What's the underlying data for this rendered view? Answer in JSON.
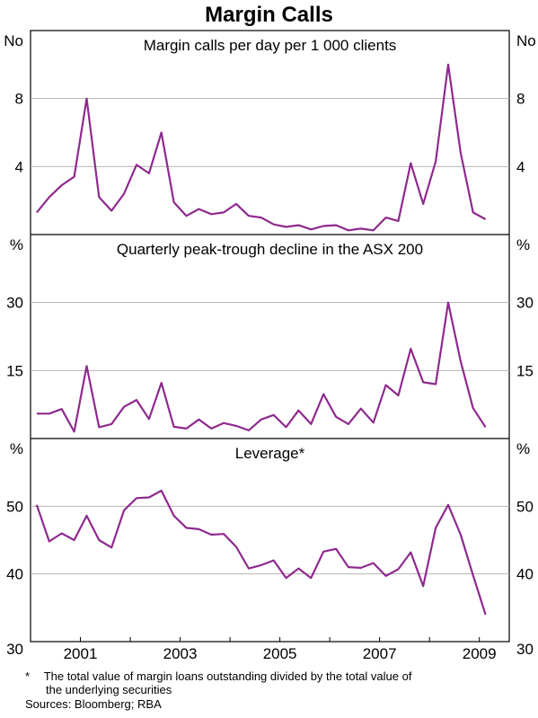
{
  "chart_data": {
    "type": "line",
    "title": "Margin Calls",
    "color": "#8e2a8e",
    "xlim": [
      2000.0,
      2009.6
    ],
    "x_ticks": [
      "2001",
      "2003",
      "2005",
      "2007",
      "2009"
    ],
    "x_tick_values": [
      2001,
      2003,
      2005,
      2007,
      2009
    ],
    "x_start": 2000.125,
    "x_step": 0.25,
    "panels": [
      {
        "title": "Margin calls per day per 1 000 clients",
        "unit": "No",
        "ylim": [
          0,
          12
        ],
        "yticks": [
          "8",
          "4"
        ],
        "ytick_values": [
          8,
          4
        ],
        "series": [
          {
            "values": [
              1.3,
              2.2,
              2.9,
              3.4,
              8.0,
              2.2,
              1.4,
              2.4,
              4.1,
              3.6,
              6.0,
              1.9,
              1.1,
              1.5,
              1.2,
              1.3,
              1.8,
              1.1,
              1.0,
              0.6,
              0.45,
              0.55,
              0.3,
              0.5,
              0.55,
              0.25,
              0.35,
              0.25,
              1.0,
              0.8,
              4.2,
              1.8,
              4.3,
              10.0,
              4.8,
              1.3,
              0.9
            ]
          }
        ]
      },
      {
        "title": "Quarterly peak-trough decline in the ASX 200",
        "unit": "%",
        "ylim": [
          0,
          45
        ],
        "yticks": [
          "30",
          "15"
        ],
        "ytick_values": [
          30,
          15
        ],
        "series": [
          {
            "values": [
              5.5,
              5.5,
              6.5,
              1.5,
              16.0,
              2.5,
              3.2,
              7.0,
              8.5,
              4.3,
              12.3,
              2.6,
              2.2,
              4.2,
              2.2,
              3.4,
              2.8,
              1.8,
              4.2,
              5.2,
              2.5,
              6.2,
              3.2,
              9.8,
              4.8,
              3.2,
              6.6,
              3.5,
              11.8,
              9.5,
              19.8,
              12.4,
              12.0,
              30.0,
              17.0,
              6.7,
              2.5
            ]
          }
        ]
      },
      {
        "title": "Leverage*",
        "unit": "%",
        "ylim": [
          30,
          60
        ],
        "yticks": [
          "50",
          "40",
          "30"
        ],
        "ytick_values": [
          50,
          40,
          30
        ],
        "series": [
          {
            "values": [
              50.2,
              44.8,
              46.0,
              45.0,
              48.6,
              45.0,
              43.9,
              49.4,
              51.2,
              51.3,
              52.3,
              48.6,
              46.8,
              46.6,
              45.8,
              45.9,
              44.0,
              40.8,
              41.3,
              42.0,
              39.4,
              40.8,
              39.4,
              43.3,
              43.7,
              41.0,
              40.9,
              41.6,
              39.7,
              40.7,
              43.2,
              38.2,
              46.8,
              50.2,
              45.8,
              39.8,
              34.0
            ]
          }
        ]
      }
    ]
  },
  "footnote": {
    "marker": "*",
    "line1": "The total value of margin loans outstanding divided by the total value of",
    "line2": "the underlying securities"
  },
  "sources": "Sources: Bloomberg; RBA"
}
